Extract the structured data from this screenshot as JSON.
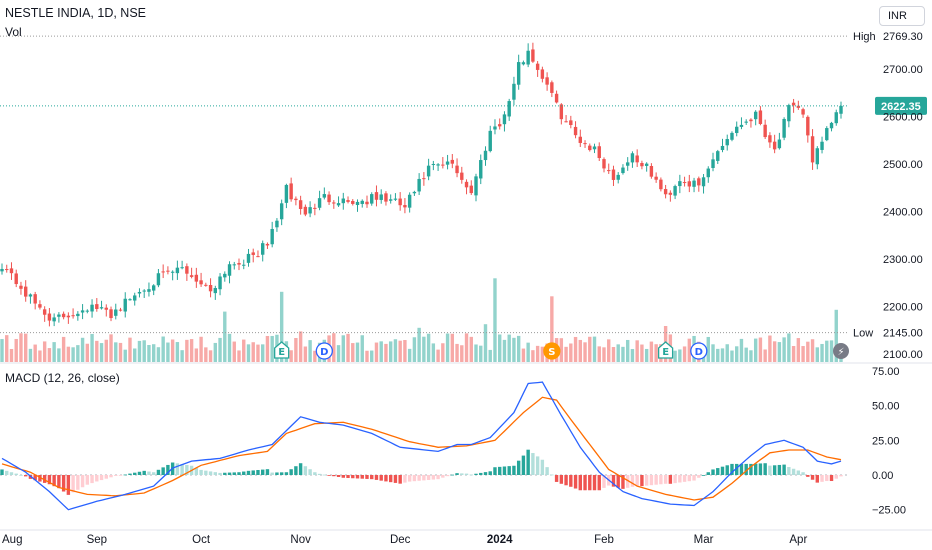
{
  "header": {
    "title": "NESTLE INDIA, 1D, NSE",
    "volume_label": "Vol",
    "macd_label": "MACD (12, 26, close)",
    "currency_button": "INR"
  },
  "colors": {
    "up": "#26a69a",
    "down": "#ef5350",
    "vol_up": "#92d3cc",
    "vol_down": "#f7a9a7",
    "macd_line": "#2962ff",
    "signal_line": "#ff6d00",
    "grid_dotted": "#9a9a9a",
    "label_badge": "#ffffff",
    "price_badge": "#26a69a"
  },
  "chart_data": [
    {
      "type": "candlestick",
      "title": "NESTLE INDIA, 1D, NSE",
      "y_axis_ticks": [
        2100,
        2200,
        2300,
        2400,
        2500,
        2600,
        2700
      ],
      "y_axis_tick_labels": [
        "2100.00",
        "2200.00",
        "2300.00",
        "2400.00",
        "2500.00",
        "2600.00",
        "2700.00"
      ],
      "ylim": [
        2078,
        2800
      ],
      "x_axis_labels": [
        "Aug",
        "Sep",
        "Oct",
        "Nov",
        "Dec",
        "2024",
        "Feb",
        "Mar",
        "Apr"
      ],
      "reference_lines": [
        {
          "name": "High",
          "value": 2769.3,
          "label": "2769.30"
        },
        {
          "name": "Low",
          "value": 2145.0,
          "label": "2145.00"
        },
        {
          "name": "Last",
          "value": 2622.35,
          "label": "2622.35"
        }
      ],
      "anchors": [
        {
          "x": 0,
          "close": 2290
        },
        {
          "x": 6,
          "close": 2215
        },
        {
          "x": 11,
          "close": 2170
        },
        {
          "x": 18,
          "close": 2200
        },
        {
          "x": 23,
          "close": 2185
        },
        {
          "x": 32,
          "close": 2255
        },
        {
          "x": 38,
          "close": 2280
        },
        {
          "x": 44,
          "close": 2235
        },
        {
          "x": 48,
          "close": 2290
        },
        {
          "x": 52,
          "close": 2300
        },
        {
          "x": 56,
          "close": 2330
        },
        {
          "x": 60,
          "close": 2445
        },
        {
          "x": 64,
          "close": 2395
        },
        {
          "x": 68,
          "close": 2430
        },
        {
          "x": 75,
          "close": 2420
        },
        {
          "x": 80,
          "close": 2430
        },
        {
          "x": 85,
          "close": 2410
        },
        {
          "x": 90,
          "close": 2490
        },
        {
          "x": 95,
          "close": 2500
        },
        {
          "x": 99,
          "close": 2440
        },
        {
          "x": 103,
          "close": 2570
        },
        {
          "x": 106,
          "close": 2600
        },
        {
          "x": 109,
          "close": 2705
        },
        {
          "x": 111,
          "close": 2740
        },
        {
          "x": 113,
          "close": 2700
        },
        {
          "x": 115,
          "close": 2670
        },
        {
          "x": 117,
          "close": 2620
        },
        {
          "x": 121,
          "close": 2560
        },
        {
          "x": 125,
          "close": 2530
        },
        {
          "x": 129,
          "close": 2470
        },
        {
          "x": 133,
          "close": 2520
        },
        {
          "x": 137,
          "close": 2480
        },
        {
          "x": 140,
          "close": 2430
        },
        {
          "x": 143,
          "close": 2470
        },
        {
          "x": 147,
          "close": 2450
        },
        {
          "x": 151,
          "close": 2530
        },
        {
          "x": 155,
          "close": 2580
        },
        {
          "x": 159,
          "close": 2605
        },
        {
          "x": 163,
          "close": 2530
        },
        {
          "x": 166,
          "close": 2615
        },
        {
          "x": 169,
          "close": 2610
        },
        {
          "x": 171,
          "close": 2510
        },
        {
          "x": 173,
          "close": 2540
        },
        {
          "x": 175,
          "close": 2590
        },
        {
          "x": 177,
          "close": 2622.35
        }
      ],
      "volume_spikes": [
        {
          "x": 47,
          "rel": 0.56
        },
        {
          "x": 59,
          "rel": 0.78
        },
        {
          "x": 63,
          "rel": 0.34
        },
        {
          "x": 70,
          "rel": 0.32
        },
        {
          "x": 88,
          "rel": 0.38
        },
        {
          "x": 102,
          "rel": 0.42
        },
        {
          "x": 104,
          "rel": 0.93
        },
        {
          "x": 116,
          "rel": 0.73
        },
        {
          "x": 140,
          "rel": 0.4
        },
        {
          "x": 176,
          "rel": 0.58
        }
      ],
      "event_markers": [
        {
          "x": 59,
          "letter": "E",
          "color": "#26a69a"
        },
        {
          "x": 68,
          "letter": "D",
          "color": "#2962ff"
        },
        {
          "x": 116,
          "letter": "S",
          "color": "#ff9800"
        },
        {
          "x": 140,
          "letter": "E",
          "color": "#26a69a"
        },
        {
          "x": 147,
          "letter": "D",
          "color": "#2962ff"
        },
        {
          "x": 177,
          "letter": "⚡",
          "color": "#787b86"
        }
      ]
    },
    {
      "type": "line+histogram",
      "title": "MACD (12, 26, close)",
      "y_axis_ticks": [
        -25,
        0,
        25,
        50,
        75
      ],
      "y_axis_tick_labels": [
        "−25.00",
        "0.00",
        "25.00",
        "50.00",
        "75.00"
      ],
      "ylim": [
        -30,
        77
      ],
      "series": [
        {
          "name": "MACD",
          "color": "#2962ff"
        },
        {
          "name": "Signal",
          "color": "#ff6d00"
        },
        {
          "name": "Histogram"
        }
      ],
      "macd_anchors": [
        {
          "x": 0,
          "y": 12
        },
        {
          "x": 5,
          "y": 2
        },
        {
          "x": 10,
          "y": -12
        },
        {
          "x": 14,
          "y": -25
        },
        {
          "x": 20,
          "y": -19
        },
        {
          "x": 26,
          "y": -14
        },
        {
          "x": 32,
          "y": -8
        },
        {
          "x": 36,
          "y": 5
        },
        {
          "x": 40,
          "y": 10
        },
        {
          "x": 46,
          "y": 12
        },
        {
          "x": 52,
          "y": 18
        },
        {
          "x": 57,
          "y": 22
        },
        {
          "x": 63,
          "y": 42
        },
        {
          "x": 67,
          "y": 38
        },
        {
          "x": 72,
          "y": 36
        },
        {
          "x": 78,
          "y": 30
        },
        {
          "x": 84,
          "y": 20
        },
        {
          "x": 92,
          "y": 17
        },
        {
          "x": 96,
          "y": 22
        },
        {
          "x": 99,
          "y": 22
        },
        {
          "x": 103,
          "y": 27
        },
        {
          "x": 108,
          "y": 45
        },
        {
          "x": 111,
          "y": 66
        },
        {
          "x": 114,
          "y": 67
        },
        {
          "x": 118,
          "y": 43
        },
        {
          "x": 122,
          "y": 20
        },
        {
          "x": 126,
          "y": 2
        },
        {
          "x": 131,
          "y": -12
        },
        {
          "x": 135,
          "y": -17
        },
        {
          "x": 141,
          "y": -21
        },
        {
          "x": 146,
          "y": -22
        },
        {
          "x": 150,
          "y": -12
        },
        {
          "x": 154,
          "y": 2
        },
        {
          "x": 158,
          "y": 14
        },
        {
          "x": 161,
          "y": 22
        },
        {
          "x": 165,
          "y": 25
        },
        {
          "x": 169,
          "y": 20
        },
        {
          "x": 172,
          "y": 10
        },
        {
          "x": 175,
          "y": 8
        },
        {
          "x": 177,
          "y": 10
        }
      ],
      "signal_anchors": [
        {
          "x": 0,
          "y": 8
        },
        {
          "x": 6,
          "y": 2
        },
        {
          "x": 12,
          "y": -9
        },
        {
          "x": 18,
          "y": -14
        },
        {
          "x": 24,
          "y": -15
        },
        {
          "x": 30,
          "y": -13
        },
        {
          "x": 36,
          "y": -4
        },
        {
          "x": 42,
          "y": 7
        },
        {
          "x": 50,
          "y": 14
        },
        {
          "x": 56,
          "y": 17
        },
        {
          "x": 60,
          "y": 30
        },
        {
          "x": 66,
          "y": 37
        },
        {
          "x": 72,
          "y": 38
        },
        {
          "x": 78,
          "y": 33
        },
        {
          "x": 86,
          "y": 24
        },
        {
          "x": 92,
          "y": 20
        },
        {
          "x": 98,
          "y": 21
        },
        {
          "x": 104,
          "y": 25
        },
        {
          "x": 110,
          "y": 45
        },
        {
          "x": 114,
          "y": 56
        },
        {
          "x": 117,
          "y": 54
        },
        {
          "x": 120,
          "y": 40
        },
        {
          "x": 124,
          "y": 22
        },
        {
          "x": 128,
          "y": 4
        },
        {
          "x": 134,
          "y": -8
        },
        {
          "x": 140,
          "y": -14
        },
        {
          "x": 146,
          "y": -18
        },
        {
          "x": 150,
          "y": -16
        },
        {
          "x": 154,
          "y": -6
        },
        {
          "x": 158,
          "y": 6
        },
        {
          "x": 162,
          "y": 16
        },
        {
          "x": 166,
          "y": 18
        },
        {
          "x": 170,
          "y": 18
        },
        {
          "x": 174,
          "y": 13
        },
        {
          "x": 177,
          "y": 11
        }
      ]
    }
  ]
}
